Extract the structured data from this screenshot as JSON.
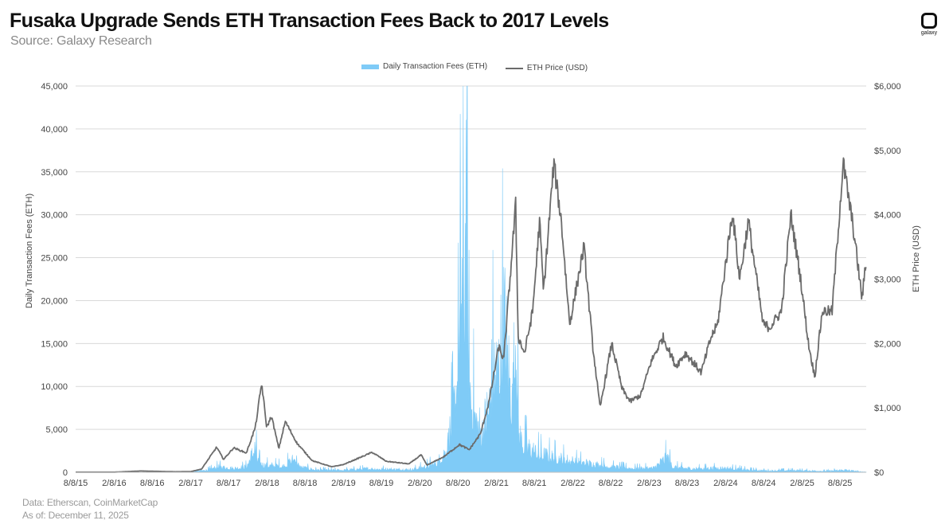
{
  "header": {
    "title": "Fusaka Upgrade Sends ETH Transaction Fees Back to 2017 Levels",
    "subtitle": "Source: Galaxy Research",
    "logo_text": "galaxy"
  },
  "footer": {
    "data_source": "Data: Etherscan, CoinMarketCap",
    "as_of": "As of: December 11, 2025"
  },
  "colors": {
    "fees": "#7fcbf7",
    "price": "#6b6b6b",
    "grid": "#d9d9d9"
  },
  "chart_data": {
    "type": "area",
    "xlabel": "",
    "ylabel": "Daily Transaction Fees (ETH)",
    "y2label": "ETH Price (USD)",
    "legend_position": "top-center",
    "grid": true,
    "ylim": [
      0,
      45000
    ],
    "y2lim": [
      0,
      6000
    ],
    "yticks": [
      "0",
      "5,000",
      "10,000",
      "15,000",
      "20,000",
      "25,000",
      "30,000",
      "35,000",
      "40,000",
      "45,000"
    ],
    "y2ticks": [
      "$0",
      "$1,000",
      "$2,000",
      "$3,000",
      "$4,000",
      "$5,000",
      "$6,000"
    ],
    "xticks": [
      "8/8/15",
      "2/8/16",
      "8/8/16",
      "2/8/17",
      "8/8/17",
      "2/8/18",
      "8/8/18",
      "2/8/19",
      "8/8/19",
      "2/8/20",
      "8/8/20",
      "2/8/21",
      "8/8/21",
      "2/8/22",
      "8/8/22",
      "2/8/23",
      "8/8/23",
      "2/8/24",
      "8/8/24",
      "2/8/25",
      "8/8/25"
    ],
    "xlim": [
      "2015-08-08",
      "2025-12-11"
    ],
    "series": [
      {
        "name": "Daily Transaction Fees (ETH)",
        "axis": "left",
        "style": "area",
        "points": [
          [
            "2015-08-08",
            0
          ],
          [
            "2016-06-01",
            20
          ],
          [
            "2017-02-08",
            60
          ],
          [
            "2017-05-01",
            300
          ],
          [
            "2017-06-20",
            700
          ],
          [
            "2017-09-01",
            500
          ],
          [
            "2017-11-01",
            700
          ],
          [
            "2017-12-14",
            3300
          ],
          [
            "2017-12-25",
            1500
          ],
          [
            "2018-01-20",
            900
          ],
          [
            "2018-05-01",
            800
          ],
          [
            "2018-06-26",
            1900
          ],
          [
            "2018-07-10",
            700
          ],
          [
            "2018-10-01",
            300
          ],
          [
            "2019-02-08",
            280
          ],
          [
            "2019-06-01",
            450
          ],
          [
            "2019-09-01",
            400
          ],
          [
            "2020-01-01",
            350
          ],
          [
            "2020-03-01",
            700
          ],
          [
            "2020-05-01",
            1200
          ],
          [
            "2020-06-15",
            3000
          ],
          [
            "2020-07-20",
            8000
          ],
          [
            "2020-08-10",
            14000
          ],
          [
            "2020-08-28",
            29000
          ],
          [
            "2020-09-05",
            20000
          ],
          [
            "2020-09-17",
            40000
          ],
          [
            "2020-09-25",
            15000
          ],
          [
            "2020-10-10",
            10000
          ],
          [
            "2020-11-01",
            7000
          ],
          [
            "2020-12-01",
            5000
          ],
          [
            "2021-01-05",
            9000
          ],
          [
            "2021-01-25",
            14000
          ],
          [
            "2021-02-10",
            13000
          ],
          [
            "2021-02-25",
            15000
          ],
          [
            "2021-03-15",
            20000
          ],
          [
            "2021-04-05",
            14000
          ],
          [
            "2021-04-25",
            8500
          ],
          [
            "2021-05-12",
            20000
          ],
          [
            "2021-05-25",
            5000
          ],
          [
            "2021-06-20",
            3500
          ],
          [
            "2021-09-01",
            2300
          ],
          [
            "2021-12-01",
            1800
          ],
          [
            "2022-03-01",
            1300
          ],
          [
            "2022-06-01",
            1000
          ],
          [
            "2022-09-01",
            650
          ],
          [
            "2022-12-01",
            500
          ],
          [
            "2023-03-01",
            550
          ],
          [
            "2023-05-05",
            2000
          ],
          [
            "2023-06-01",
            700
          ],
          [
            "2023-09-01",
            450
          ],
          [
            "2024-01-01",
            550
          ],
          [
            "2024-03-01",
            500
          ],
          [
            "2024-06-01",
            300
          ],
          [
            "2024-09-01",
            200
          ],
          [
            "2025-01-01",
            250
          ],
          [
            "2025-06-01",
            150
          ],
          [
            "2025-09-01",
            300
          ],
          [
            "2025-11-01",
            100
          ],
          [
            "2025-12-11",
            40
          ]
        ]
      },
      {
        "name": "ETH Price (USD)",
        "axis": "right",
        "style": "line",
        "points": [
          [
            "2015-08-08",
            2
          ],
          [
            "2016-02-08",
            2
          ],
          [
            "2016-06-15",
            20
          ],
          [
            "2016-12-01",
            8
          ],
          [
            "2017-02-08",
            11
          ],
          [
            "2017-04-01",
            50
          ],
          [
            "2017-06-12",
            390
          ],
          [
            "2017-07-15",
            200
          ],
          [
            "2017-09-01",
            380
          ],
          [
            "2017-11-01",
            300
          ],
          [
            "2017-12-14",
            700
          ],
          [
            "2018-01-13",
            1380
          ],
          [
            "2018-02-06",
            700
          ],
          [
            "2018-03-01",
            870
          ],
          [
            "2018-04-05",
            370
          ],
          [
            "2018-05-06",
            790
          ],
          [
            "2018-07-01",
            450
          ],
          [
            "2018-09-12",
            180
          ],
          [
            "2018-12-14",
            85
          ],
          [
            "2019-02-08",
            120
          ],
          [
            "2019-06-25",
            310
          ],
          [
            "2019-09-01",
            170
          ],
          [
            "2019-12-18",
            130
          ],
          [
            "2020-02-14",
            270
          ],
          [
            "2020-03-13",
            110
          ],
          [
            "2020-06-01",
            240
          ],
          [
            "2020-08-15",
            430
          ],
          [
            "2020-10-01",
            350
          ],
          [
            "2020-11-24",
            600
          ],
          [
            "2021-01-04",
            1100
          ],
          [
            "2021-02-19",
            1950
          ],
          [
            "2021-03-15",
            1750
          ],
          [
            "2021-05-11",
            4150
          ],
          [
            "2021-05-23",
            2100
          ],
          [
            "2021-06-22",
            1850
          ],
          [
            "2021-07-31",
            2500
          ],
          [
            "2021-09-02",
            3900
          ],
          [
            "2021-09-21",
            2800
          ],
          [
            "2021-11-09",
            4800
          ],
          [
            "2021-12-15",
            3900
          ],
          [
            "2022-01-24",
            2300
          ],
          [
            "2022-04-02",
            3500
          ],
          [
            "2022-05-13",
            2000
          ],
          [
            "2022-06-18",
            1000
          ],
          [
            "2022-08-13",
            2000
          ],
          [
            "2022-10-01",
            1300
          ],
          [
            "2022-11-09",
            1100
          ],
          [
            "2022-12-30",
            1200
          ],
          [
            "2023-02-15",
            1700
          ],
          [
            "2023-04-15",
            2100
          ],
          [
            "2023-06-15",
            1650
          ],
          [
            "2023-08-01",
            1850
          ],
          [
            "2023-10-15",
            1550
          ],
          [
            "2023-12-01",
            2100
          ],
          [
            "2024-01-01",
            2300
          ],
          [
            "2024-03-12",
            4050
          ],
          [
            "2024-04-15",
            3000
          ],
          [
            "2024-05-27",
            3900
          ],
          [
            "2024-08-05",
            2300
          ],
          [
            "2024-09-06",
            2250
          ],
          [
            "2024-11-01",
            2500
          ],
          [
            "2024-12-16",
            4000
          ],
          [
            "2025-02-01",
            3000
          ],
          [
            "2025-03-10",
            2000
          ],
          [
            "2025-04-09",
            1480
          ],
          [
            "2025-05-15",
            2500
          ],
          [
            "2025-07-01",
            2500
          ],
          [
            "2025-08-23",
            4800
          ],
          [
            "2025-10-10",
            3800
          ],
          [
            "2025-11-21",
            2700
          ],
          [
            "2025-12-11",
            3300
          ]
        ]
      }
    ]
  }
}
